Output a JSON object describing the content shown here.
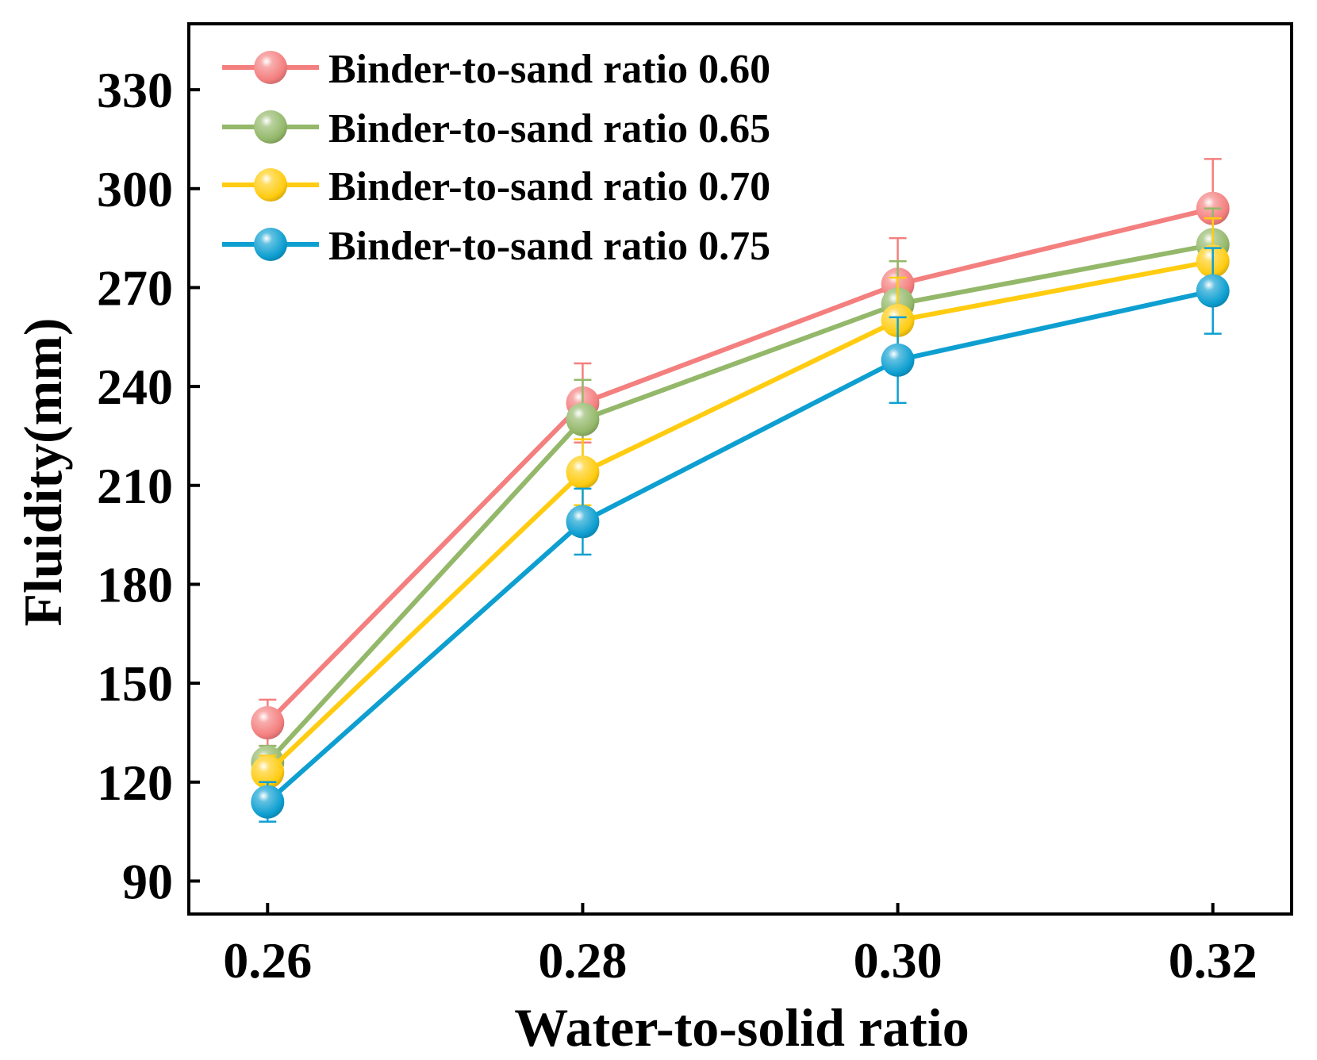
{
  "chart_data": {
    "type": "line",
    "xlabel": "Water-to-solid ratio",
    "ylabel": "Fluidity(mm)",
    "x": [
      0.26,
      0.28,
      0.3,
      0.32
    ],
    "x_tick_labels": [
      "0.26",
      "0.28",
      "0.30",
      "0.32"
    ],
    "xlim": [
      0.255,
      0.325
    ],
    "ylim": [
      80,
      350
    ],
    "y_ticks": [
      90,
      120,
      150,
      180,
      210,
      240,
      270,
      300,
      330
    ],
    "y_tick_labels": [
      "90",
      "120",
      "150",
      "180",
      "210",
      "240",
      "270",
      "300",
      "330"
    ],
    "grid": false,
    "legend_position": "top-left",
    "series": [
      {
        "name": "Binder-to-sand ratio 0.60",
        "color": "#F47F7F",
        "values": [
          138,
          235,
          271,
          294
        ],
        "errors": [
          7,
          12,
          14,
          15
        ]
      },
      {
        "name": "Binder-to-sand ratio 0.65",
        "color": "#94B86A",
        "values": [
          126,
          230,
          265,
          283
        ],
        "errors": [
          5,
          12,
          13,
          11
        ]
      },
      {
        "name": "Binder-to-sand ratio 0.70",
        "color": "#FFCC11",
        "values": [
          123,
          214,
          260,
          278
        ],
        "errors": [
          5,
          10,
          13,
          13
        ]
      },
      {
        "name": "Binder-to-sand ratio 0.75",
        "color": "#0E9FD1",
        "values": [
          114,
          199,
          248,
          269
        ],
        "errors": [
          6,
          10,
          13,
          13
        ]
      }
    ]
  }
}
